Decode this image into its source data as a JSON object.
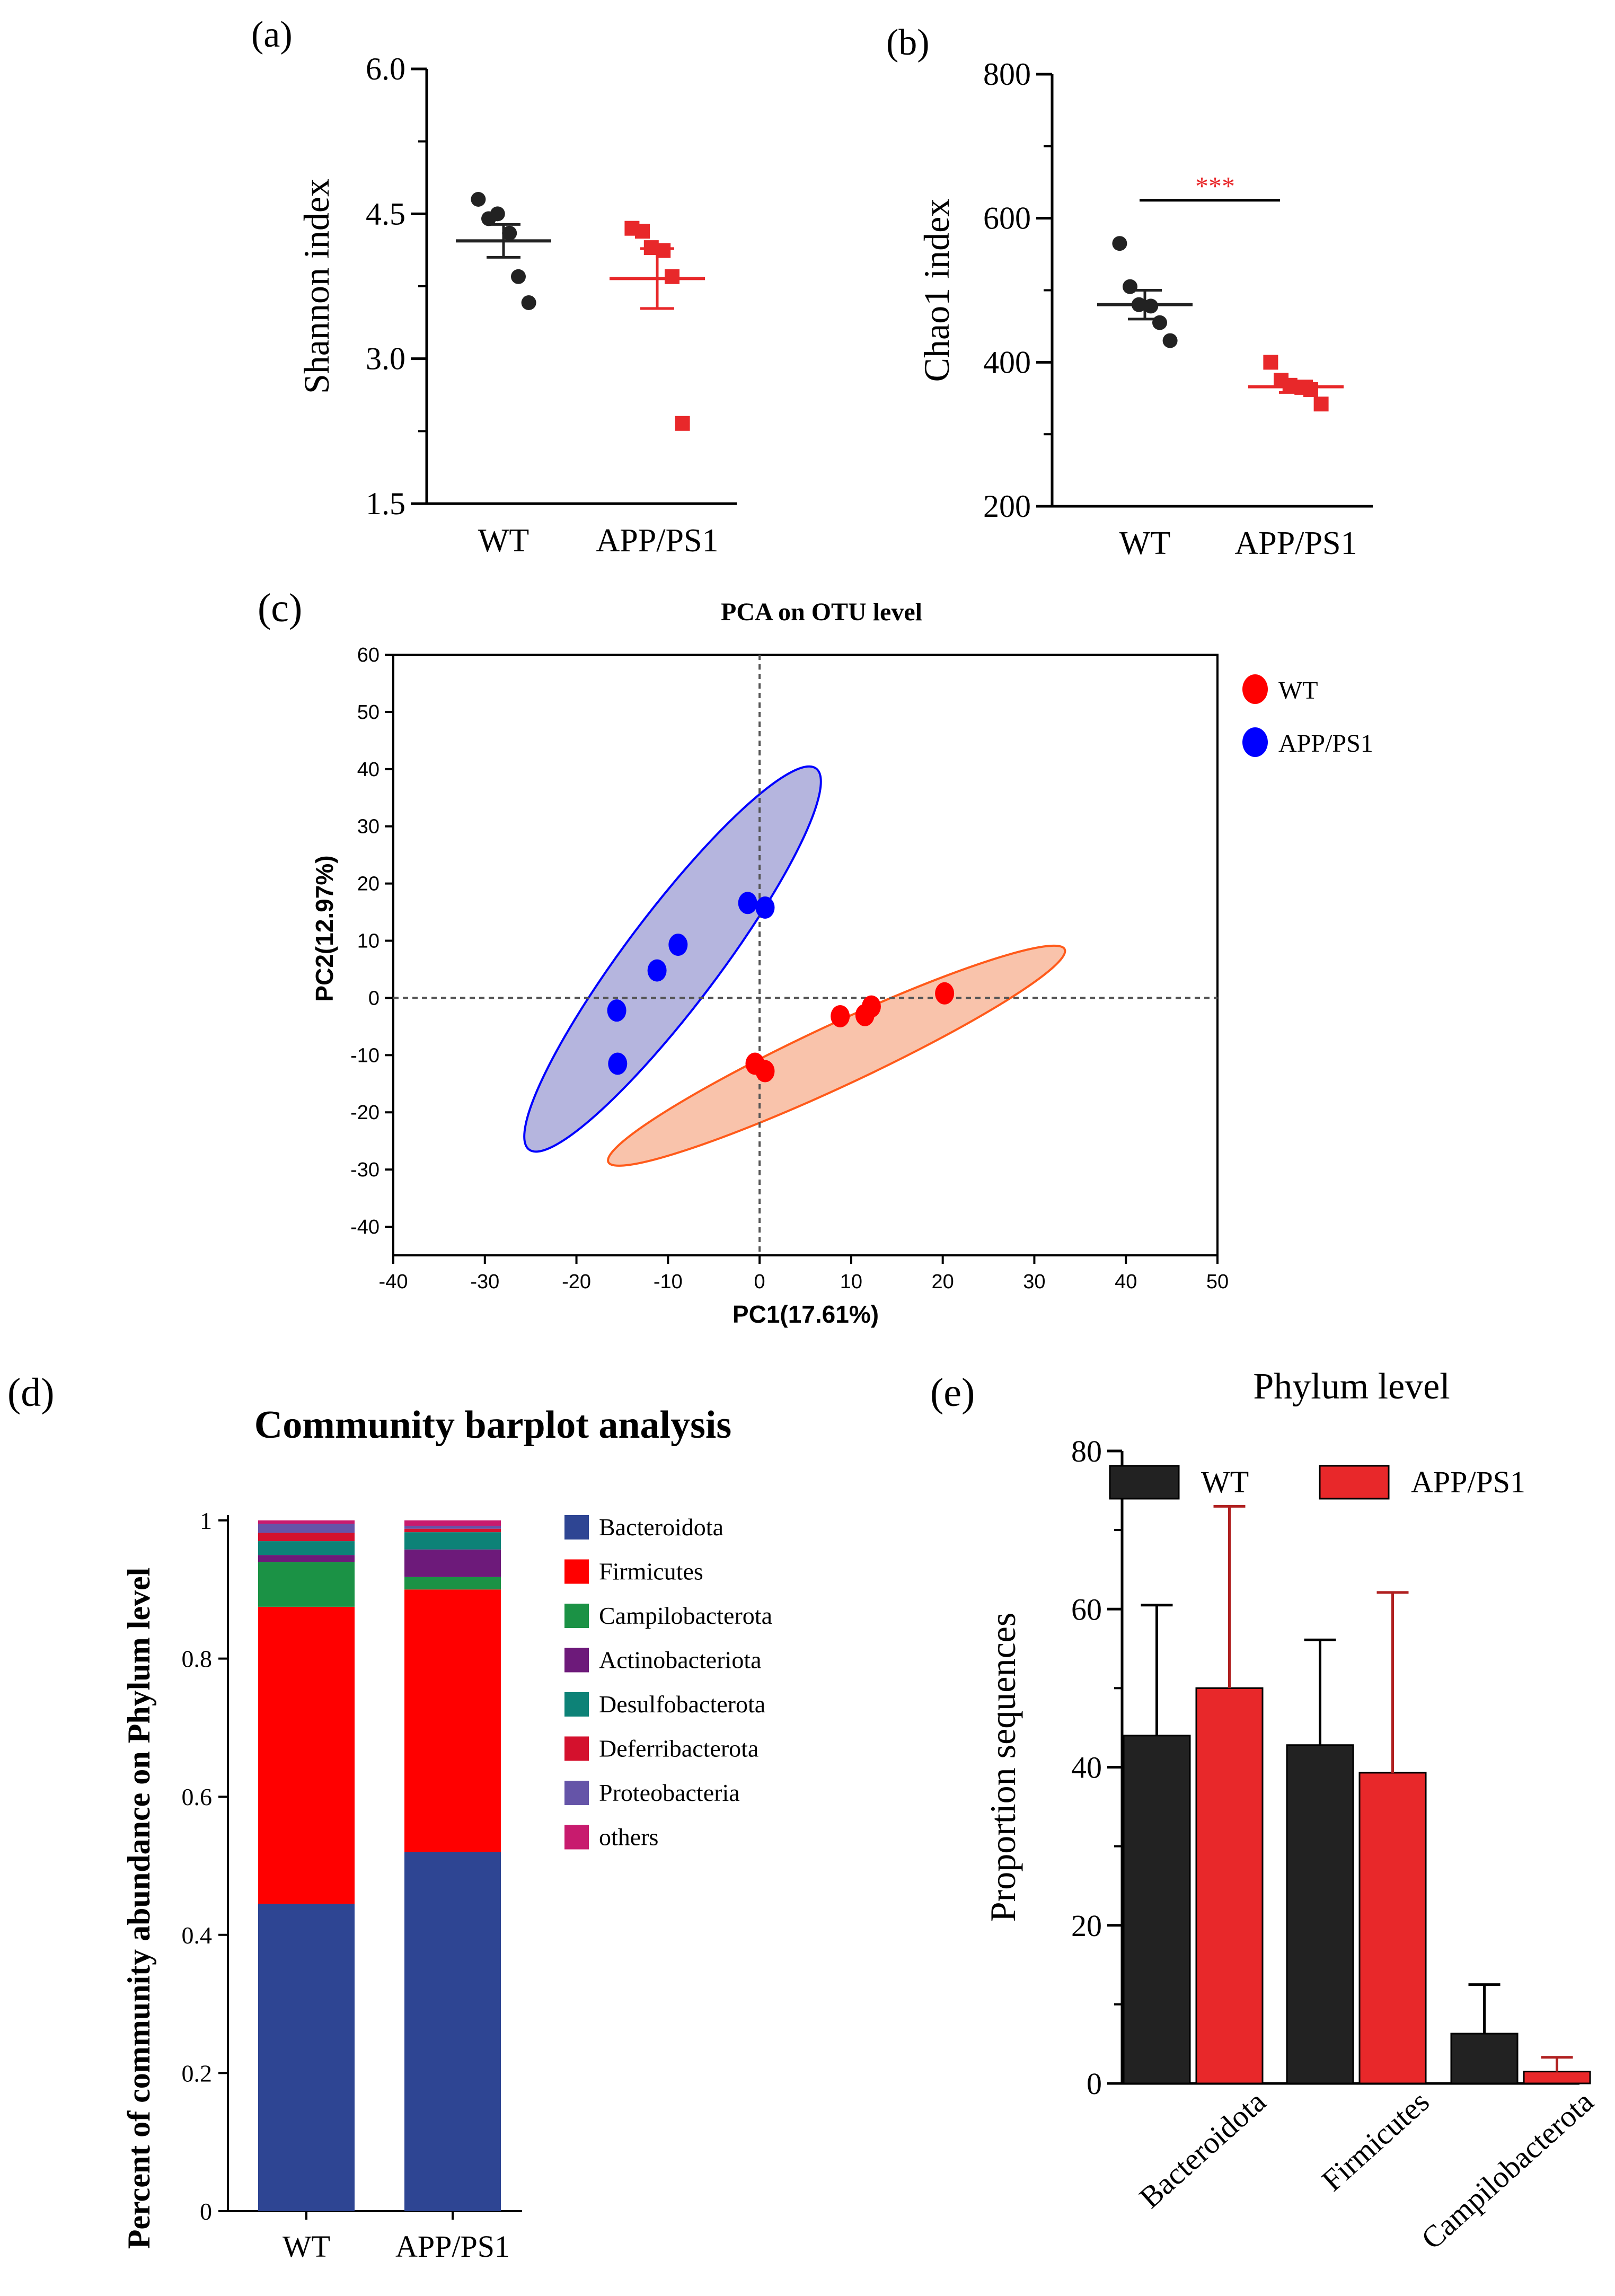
{
  "panel_labels": {
    "a": "(a)",
    "b": "(b)",
    "c": "(c)",
    "d": "(d)",
    "e": "(e)"
  },
  "colors": {
    "wt_dark": "#222222",
    "app_red": "#e8282a",
    "pca_wt": "#ff0000",
    "pca_app": "#0000ff",
    "ellipse_blue_fill": "#a8a8d8",
    "ellipse_orange_fill": "#f8b89c",
    "ellipse_orange_stroke": "#ff5a1a",
    "significance": "#e8282a"
  },
  "chart_data": [
    {
      "id": "a",
      "type": "scatter",
      "title": "",
      "ylabel": "Shannon index",
      "ylim": [
        1.5,
        6.0
      ],
      "yticks": [
        "1.5",
        "3.0",
        "4.5",
        "6.0"
      ],
      "categories": [
        "WT",
        "APP/PS1"
      ],
      "series": [
        {
          "name": "WT",
          "values": [
            4.65,
            4.45,
            4.5,
            4.3,
            3.85,
            3.58
          ],
          "mean": 4.22,
          "sem": 0.17
        },
        {
          "name": "APP/PS1",
          "values": [
            4.35,
            4.32,
            4.15,
            4.12,
            3.85,
            2.33
          ],
          "mean": 3.83,
          "sem": 0.31
        }
      ]
    },
    {
      "id": "b",
      "type": "scatter",
      "title": "",
      "ylabel": "Chao1 index",
      "ylim": [
        200,
        800
      ],
      "yticks": [
        "200",
        "400",
        "600",
        "800"
      ],
      "categories": [
        "WT",
        "APP/PS1"
      ],
      "significance": "***",
      "series": [
        {
          "name": "WT",
          "values": [
            565,
            505,
            480,
            478,
            455,
            430
          ],
          "mean": 480,
          "sem": 20
        },
        {
          "name": "APP/PS1",
          "values": [
            400,
            375,
            368,
            365,
            362,
            342
          ],
          "mean": 366,
          "sem": 8
        }
      ]
    },
    {
      "id": "c",
      "type": "scatter",
      "title": "PCA on OTU level",
      "xlabel": "PC1(17.61%)",
      "ylabel": "PC2(12.97%)",
      "xlim": [
        -40,
        50
      ],
      "ylim": [
        -45,
        60
      ],
      "xticks": [
        "-40",
        "-30",
        "-20",
        "-10",
        "0",
        "10",
        "20",
        "30",
        "40",
        "50"
      ],
      "yticks": [
        "60",
        "50",
        "40",
        "30",
        "20",
        "10",
        "0",
        "-10",
        "-20",
        "-30",
        "-40"
      ],
      "grid": false,
      "reference_lines": {
        "x": 0,
        "y": 0
      },
      "legend": "top-right",
      "series": [
        {
          "name": "WT",
          "points": [
            [
              20.2,
              0.8
            ],
            [
              12.2,
              -1.5
            ],
            [
              11.5,
              -3.0
            ],
            [
              8.8,
              -3.2
            ],
            [
              -0.5,
              -11.5
            ],
            [
              0.6,
              -12.8
            ]
          ]
        },
        {
          "name": "APP/PS1",
          "points": [
            [
              -1.3,
              16.6
            ],
            [
              0.6,
              15.8
            ],
            [
              -8.9,
              9.3
            ],
            [
              -11.2,
              4.8
            ],
            [
              -15.6,
              -2.2
            ],
            [
              -15.5,
              -11.5
            ]
          ]
        }
      ]
    },
    {
      "id": "d",
      "type": "bar",
      "stacked": true,
      "title": "Community barplot analysis",
      "ylabel": "Percent of community abundance on Phylum level",
      "ylim": [
        0,
        1
      ],
      "yticks": [
        "0",
        "0.2",
        "0.4",
        "0.6",
        "0.8",
        "1"
      ],
      "categories": [
        "WT",
        "APP/PS1"
      ],
      "legend": "right",
      "series": [
        {
          "name": "Bacteroidota",
          "color": "#2e4593",
          "values": [
            0.445,
            0.52
          ]
        },
        {
          "name": "Firmicutes",
          "color": "#ff0000",
          "values": [
            0.43,
            0.38
          ]
        },
        {
          "name": "Campilobacterota",
          "color": "#1b9245",
          "values": [
            0.065,
            0.018
          ]
        },
        {
          "name": "Actinobacteriota",
          "color": "#6d1a7a",
          "values": [
            0.01,
            0.04
          ]
        },
        {
          "name": "Desulfobacterota",
          "color": "#0d8277",
          "values": [
            0.02,
            0.025
          ]
        },
        {
          "name": "Deferribacterota",
          "color": "#d4112d",
          "values": [
            0.012,
            0.005
          ]
        },
        {
          "name": "Proteobacteria",
          "color": "#6554a8",
          "values": [
            0.013,
            0.004
          ]
        },
        {
          "name": "others",
          "color": "#c81b6e",
          "values": [
            0.005,
            0.008
          ]
        }
      ]
    },
    {
      "id": "e",
      "type": "bar",
      "title": "Phylum level",
      "ylabel": "Proportion sequences",
      "ylim": [
        0,
        80
      ],
      "yticks": [
        "0",
        "20",
        "40",
        "60",
        "80"
      ],
      "categories": [
        "Bacteroidota",
        "Firmicutes",
        "Campilobacterota"
      ],
      "legend": "top",
      "series": [
        {
          "name": "WT",
          "values": [
            44,
            42.8,
            6.3
          ],
          "error": [
            16.5,
            13.3,
            6.2
          ]
        },
        {
          "name": "APP/PS1",
          "values": [
            50,
            39.3,
            1.5
          ],
          "error": [
            23,
            22.8,
            1.8
          ]
        }
      ]
    }
  ]
}
